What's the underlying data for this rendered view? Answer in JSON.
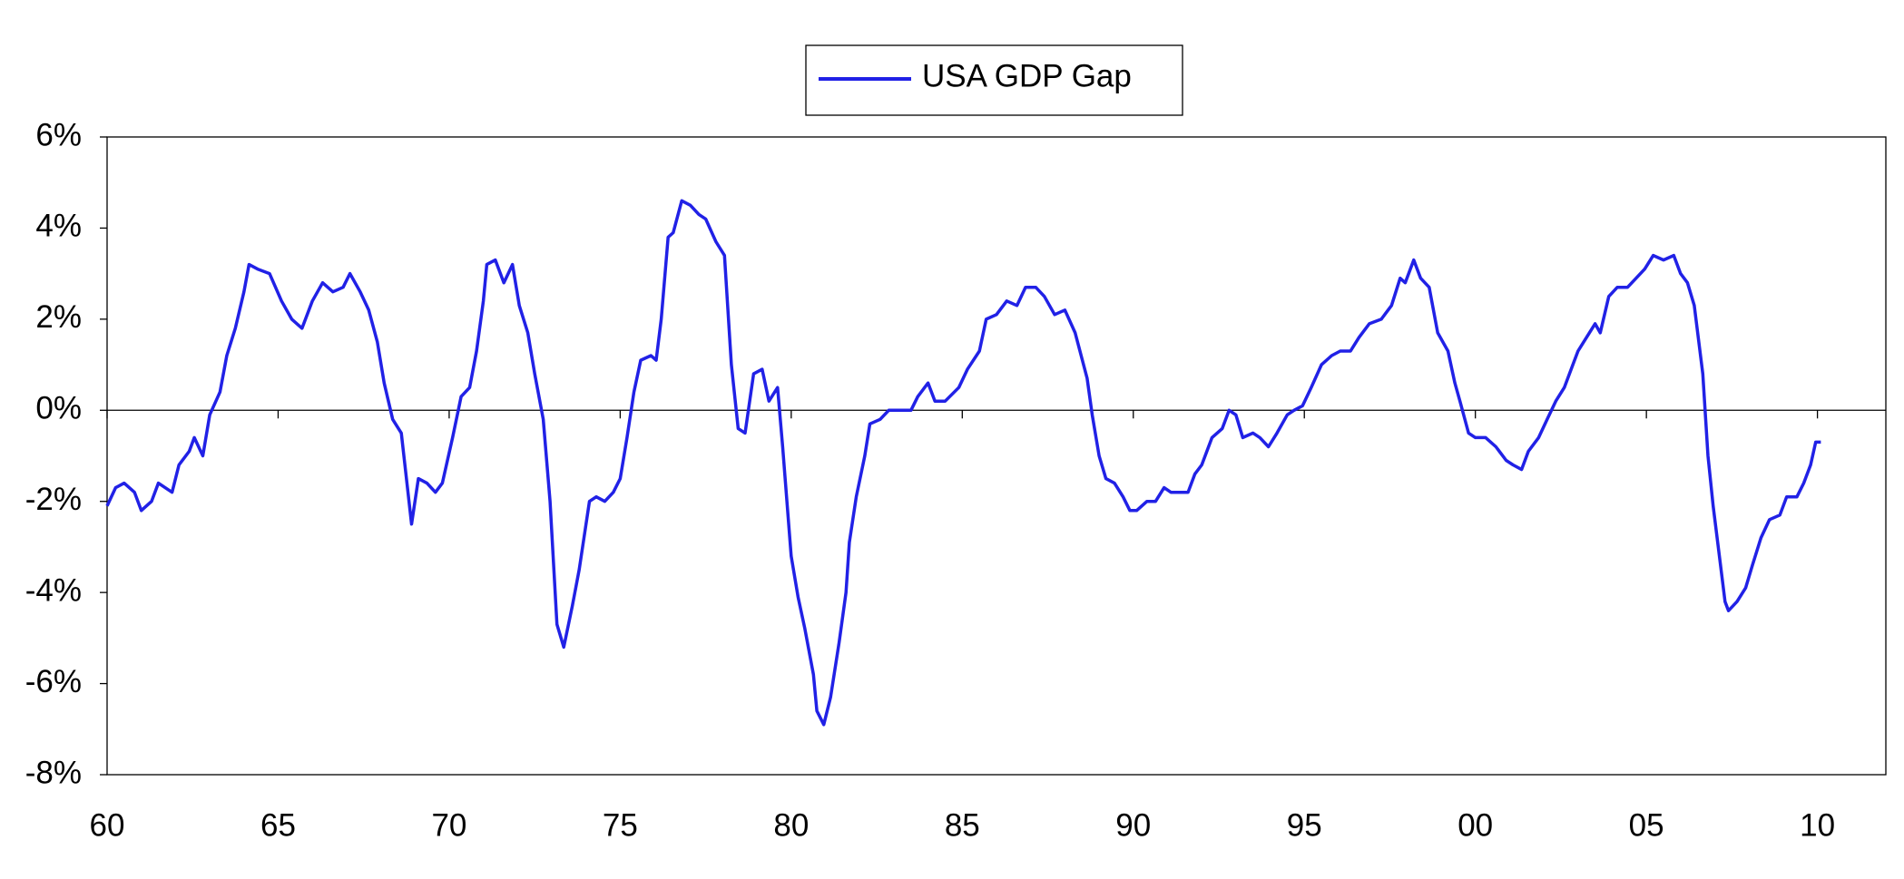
{
  "chart_data": {
    "type": "line",
    "x": [
      1960.0,
      1960.25,
      1960.5,
      1960.8,
      1961.0,
      1961.3,
      1961.5,
      1961.9,
      1962.1,
      1962.4,
      1962.55,
      1962.8,
      1963.0,
      1963.3,
      1963.5,
      1963.75,
      1964.0,
      1964.15,
      1964.4,
      1964.75,
      1965.1,
      1965.4,
      1965.7,
      1966.0,
      1966.3,
      1966.6,
      1966.9,
      1967.1,
      1967.4,
      1967.65,
      1967.9,
      1968.1,
      1968.35,
      1968.6,
      1968.9,
      1969.1,
      1969.35,
      1969.6,
      1969.8,
      1970.1,
      1970.35,
      1970.6,
      1970.8,
      1971.0,
      1971.1,
      1971.35,
      1971.6,
      1971.85,
      1972.05,
      1972.3,
      1972.5,
      1972.75,
      1972.95,
      1973.15,
      1973.35,
      1973.6,
      1973.8,
      1974.1,
      1974.3,
      1974.55,
      1974.8,
      1975.0,
      1975.2,
      1975.4,
      1975.6,
      1975.9,
      1976.05,
      1976.2,
      1976.4,
      1976.55,
      1976.8,
      1977.05,
      1977.3,
      1977.5,
      1977.8,
      1978.05,
      1978.25,
      1978.45,
      1978.65,
      1978.9,
      1979.15,
      1979.35,
      1979.6,
      1979.75,
      1980.0,
      1980.2,
      1980.4,
      1980.65,
      1980.75,
      1980.95,
      1981.15,
      1981.4,
      1981.6,
      1981.7,
      1981.9,
      1982.15,
      1982.3,
      1982.6,
      1982.85,
      1983.15,
      1983.5,
      1983.7,
      1984.0,
      1984.2,
      1984.5,
      1984.9,
      1985.15,
      1985.5,
      1985.7,
      1986.0,
      1986.3,
      1986.6,
      1986.85,
      1987.15,
      1987.4,
      1987.7,
      1988.0,
      1988.3,
      1988.65,
      1988.8,
      1989.0,
      1989.2,
      1989.45,
      1989.7,
      1989.9,
      1990.1,
      1990.4,
      1990.65,
      1990.9,
      1991.1,
      1991.4,
      1991.6,
      1991.8,
      1992.0,
      1992.3,
      1992.6,
      1992.8,
      1993.0,
      1993.2,
      1993.5,
      1993.7,
      1993.95,
      1994.2,
      1994.5,
      1994.7,
      1994.95,
      1995.2,
      1995.5,
      1995.8,
      1996.05,
      1996.35,
      1996.6,
      1996.9,
      1997.25,
      1997.55,
      1997.8,
      1997.95,
      1998.2,
      1998.4,
      1998.65,
      1998.9,
      1999.2,
      1999.4,
      1999.55,
      1999.8,
      2000.0,
      2000.3,
      2000.6,
      2000.9,
      2001.1,
      2001.35,
      2001.55,
      2001.85,
      2002.1,
      2002.35,
      2002.6,
      2002.85,
      2003.0,
      2003.25,
      2003.5,
      2003.65,
      2003.9,
      2004.15,
      2004.45,
      2004.7,
      2004.95,
      2005.2,
      2005.5,
      2005.8,
      2006.0,
      2006.2,
      2006.4,
      2006.65,
      2006.8,
      2006.95,
      2007.15,
      2007.3,
      2007.4,
      2007.65,
      2007.9,
      2008.1,
      2008.35,
      2008.6,
      2008.9,
      2009.1,
      2009.4,
      2009.6,
      2009.8,
      2009.95,
      2010.1
    ],
    "series": [
      {
        "name": "USA GDP Gap",
        "color": "#2121e6",
        "values": [
          -2.1,
          -1.7,
          -1.6,
          -1.8,
          -2.2,
          -2.0,
          -1.6,
          -1.8,
          -1.2,
          -0.9,
          -0.6,
          -1.0,
          -0.1,
          0.4,
          1.2,
          1.8,
          2.6,
          3.2,
          3.1,
          3.0,
          2.4,
          2.0,
          1.8,
          2.4,
          2.8,
          2.6,
          2.7,
          3.0,
          2.6,
          2.2,
          1.5,
          0.6,
          -0.2,
          -0.5,
          -2.5,
          -1.5,
          -1.6,
          -1.8,
          -1.6,
          -0.6,
          0.3,
          0.5,
          1.3,
          2.4,
          3.2,
          3.3,
          2.8,
          3.2,
          2.3,
          1.7,
          0.8,
          -0.2,
          -2.0,
          -4.7,
          -5.2,
          -4.3,
          -3.5,
          -2.0,
          -1.9,
          -2.0,
          -1.8,
          -1.5,
          -0.6,
          0.4,
          1.1,
          1.2,
          1.1,
          2.0,
          3.8,
          3.9,
          4.6,
          4.5,
          4.3,
          4.2,
          3.7,
          3.4,
          1.0,
          -0.4,
          -0.5,
          0.8,
          0.9,
          0.2,
          0.5,
          -0.8,
          -3.2,
          -4.1,
          -4.8,
          -5.8,
          -6.6,
          -6.9,
          -6.3,
          -5.1,
          -4.0,
          -2.9,
          -1.9,
          -1.0,
          -0.3,
          -0.2,
          0.0,
          0.0,
          0.0,
          0.3,
          0.6,
          0.2,
          0.2,
          0.5,
          0.9,
          1.3,
          2.0,
          2.1,
          2.4,
          2.3,
          2.7,
          2.7,
          2.5,
          2.1,
          2.2,
          1.7,
          0.7,
          -0.1,
          -1.0,
          -1.5,
          -1.6,
          -1.9,
          -2.2,
          -2.2,
          -2.0,
          -2.0,
          -1.7,
          -1.8,
          -1.8,
          -1.8,
          -1.4,
          -1.2,
          -0.6,
          -0.4,
          0.0,
          -0.1,
          -0.6,
          -0.5,
          -0.6,
          -0.8,
          -0.5,
          -0.1,
          0.0,
          0.1,
          0.5,
          1.0,
          1.2,
          1.3,
          1.3,
          1.6,
          1.9,
          2.0,
          2.3,
          2.9,
          2.8,
          3.3,
          2.9,
          2.7,
          1.7,
          1.3,
          0.6,
          0.2,
          -0.5,
          -0.6,
          -0.6,
          -0.8,
          -1.1,
          -1.2,
          -1.3,
          -0.9,
          -0.6,
          -0.2,
          0.2,
          0.5,
          1.0,
          1.3,
          1.6,
          1.9,
          1.7,
          2.5,
          2.7,
          2.7,
          2.9,
          3.1,
          3.4,
          3.3,
          3.4,
          3.0,
          2.8,
          2.3,
          0.8,
          -1.0,
          -2.1,
          -3.3,
          -4.2,
          -4.4,
          -4.2,
          -3.9,
          -3.4,
          -2.8,
          -2.4,
          -2.3,
          -1.9,
          -1.9,
          -1.6,
          -1.2,
          -0.7,
          -0.7
        ]
      }
    ],
    "xlim": [
      1960,
      2012
    ],
    "xticks": [
      {
        "value": 1960,
        "label": "60"
      },
      {
        "value": 1965,
        "label": "65"
      },
      {
        "value": 1970,
        "label": "70"
      },
      {
        "value": 1975,
        "label": "75"
      },
      {
        "value": 1980,
        "label": "80"
      },
      {
        "value": 1985,
        "label": "85"
      },
      {
        "value": 1990,
        "label": "90"
      },
      {
        "value": 1995,
        "label": "95"
      },
      {
        "value": 2000,
        "label": "00"
      },
      {
        "value": 2005,
        "label": "05"
      },
      {
        "value": 2010,
        "label": "10"
      }
    ],
    "ylim": [
      -8,
      6
    ],
    "yticks": [
      {
        "value": -8,
        "label": "-8%"
      },
      {
        "value": -6,
        "label": "-6%"
      },
      {
        "value": -4,
        "label": "-4%"
      },
      {
        "value": -2,
        "label": "-2%"
      },
      {
        "value": 0,
        "label": "0%"
      },
      {
        "value": 2,
        "label": "2%"
      },
      {
        "value": 4,
        "label": "4%"
      },
      {
        "value": 6,
        "label": "6%"
      }
    ],
    "grid": false,
    "legend": "top"
  }
}
